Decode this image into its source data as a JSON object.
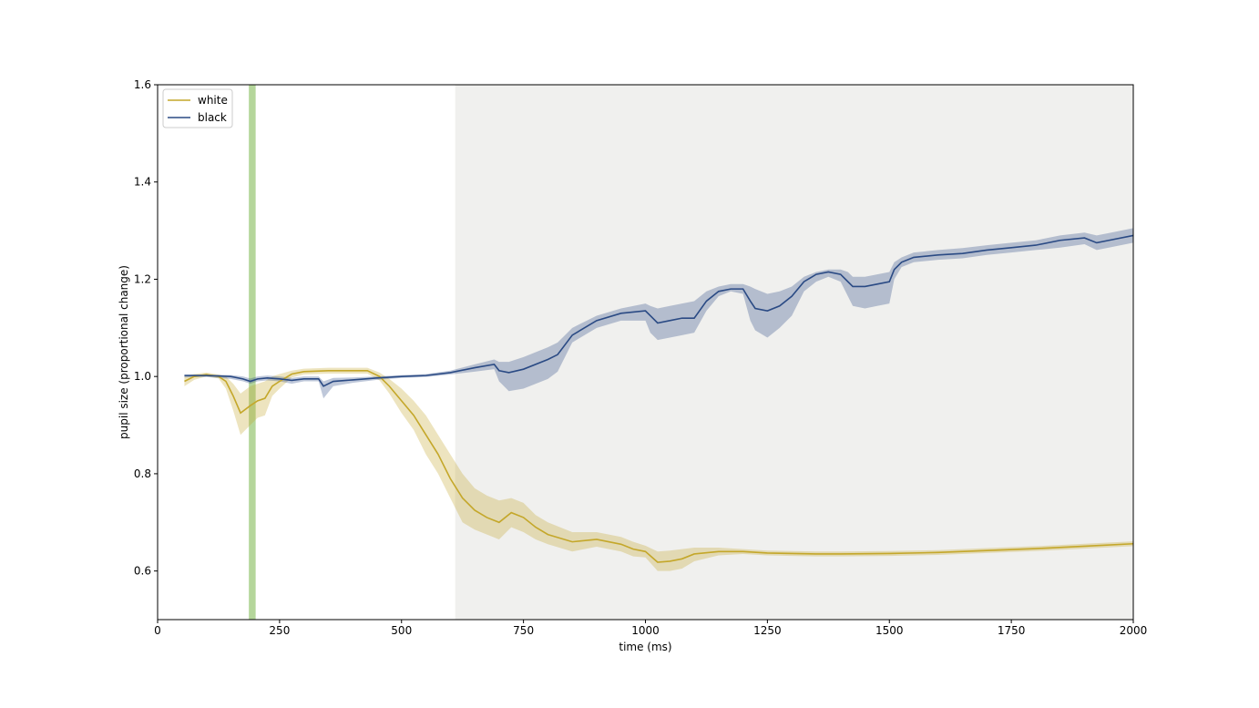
{
  "chart_data": {
    "type": "line",
    "xlabel": "time (ms)",
    "ylabel": "pupil size (proportional change)",
    "xlim": [
      0,
      2000
    ],
    "ylim": [
      0.5,
      1.6
    ],
    "xticks": [
      0,
      250,
      500,
      750,
      1000,
      1250,
      1500,
      1750,
      2000
    ],
    "yticks": [
      0.6,
      0.8,
      1.0,
      1.2,
      1.4,
      1.6
    ],
    "xtick_labels": [
      "0",
      "250",
      "500",
      "750",
      "1000",
      "1250",
      "1500",
      "1750",
      "2000"
    ],
    "ytick_labels": [
      "0.6",
      "0.8",
      "1.0",
      "1.2",
      "1.4",
      "1.6"
    ],
    "grid": false,
    "legend_position": "top-left",
    "shaded_regions": [
      {
        "kind": "marker",
        "x_start": 187,
        "x_end": 201,
        "color": "#b5d69b"
      },
      {
        "kind": "window",
        "x_start": 610,
        "x_end": 2000,
        "color": "#f0f0ee"
      }
    ],
    "series": [
      {
        "name": "white",
        "color": "#c4a72a",
        "x": [
          55,
          75,
          100,
          125,
          140,
          155,
          170,
          190,
          205,
          220,
          235,
          250,
          275,
          300,
          350,
          400,
          430,
          455,
          475,
          500,
          525,
          550,
          575,
          600,
          625,
          650,
          675,
          700,
          725,
          750,
          775,
          800,
          850,
          900,
          950,
          975,
          1000,
          1025,
          1050,
          1075,
          1100,
          1150,
          1200,
          1250,
          1300,
          1350,
          1400,
          1500,
          1600,
          1700,
          1800,
          1900,
          2000
        ],
        "y": [
          0.99,
          1.0,
          1.004,
          1.0,
          0.99,
          0.96,
          0.925,
          0.94,
          0.95,
          0.955,
          0.98,
          0.99,
          1.005,
          1.01,
          1.012,
          1.012,
          1.012,
          1.0,
          0.98,
          0.95,
          0.92,
          0.88,
          0.84,
          0.79,
          0.75,
          0.725,
          0.71,
          0.7,
          0.72,
          0.71,
          0.69,
          0.675,
          0.66,
          0.665,
          0.655,
          0.645,
          0.64,
          0.618,
          0.62,
          0.625,
          0.635,
          0.64,
          0.64,
          0.637,
          0.636,
          0.635,
          0.635,
          0.636,
          0.638,
          0.642,
          0.646,
          0.651,
          0.656
        ],
        "upper": [
          1.0,
          1.005,
          1.008,
          1.004,
          1.0,
          0.985,
          0.965,
          0.98,
          0.985,
          0.99,
          1.0,
          1.005,
          1.012,
          1.016,
          1.018,
          1.018,
          1.018,
          1.008,
          0.995,
          0.975,
          0.95,
          0.92,
          0.88,
          0.84,
          0.8,
          0.77,
          0.755,
          0.745,
          0.75,
          0.74,
          0.715,
          0.7,
          0.68,
          0.68,
          0.67,
          0.66,
          0.652,
          0.64,
          0.642,
          0.645,
          0.648,
          0.648,
          0.645,
          0.642,
          0.641,
          0.64,
          0.64,
          0.641,
          0.643,
          0.647,
          0.651,
          0.656,
          0.661
        ],
        "lower": [
          0.98,
          0.993,
          1.0,
          0.996,
          0.975,
          0.93,
          0.88,
          0.9,
          0.915,
          0.92,
          0.96,
          0.975,
          0.998,
          1.004,
          1.006,
          1.006,
          1.006,
          0.992,
          0.965,
          0.925,
          0.89,
          0.84,
          0.8,
          0.75,
          0.7,
          0.685,
          0.675,
          0.665,
          0.69,
          0.68,
          0.665,
          0.655,
          0.64,
          0.65,
          0.64,
          0.63,
          0.628,
          0.6,
          0.6,
          0.605,
          0.62,
          0.632,
          0.635,
          0.632,
          0.631,
          0.63,
          0.63,
          0.631,
          0.633,
          0.637,
          0.641,
          0.646,
          0.651
        ]
      },
      {
        "name": "black",
        "color": "#2a4a84",
        "x": [
          55,
          100,
          150,
          175,
          190,
          205,
          225,
          250,
          275,
          300,
          330,
          340,
          360,
          400,
          450,
          500,
          550,
          600,
          650,
          690,
          700,
          720,
          750,
          800,
          820,
          850,
          900,
          950,
          1000,
          1010,
          1025,
          1050,
          1075,
          1100,
          1125,
          1150,
          1175,
          1200,
          1215,
          1225,
          1250,
          1275,
          1300,
          1325,
          1350,
          1375,
          1400,
          1415,
          1425,
          1450,
          1475,
          1500,
          1510,
          1525,
          1550,
          1600,
          1650,
          1700,
          1750,
          1800,
          1850,
          1900,
          1925,
          1950,
          2000
        ],
        "y": [
          1.002,
          1.002,
          1.0,
          0.995,
          0.99,
          0.995,
          0.997,
          0.995,
          0.992,
          0.995,
          0.995,
          0.98,
          0.99,
          0.993,
          0.997,
          1.0,
          1.002,
          1.008,
          1.018,
          1.025,
          1.012,
          1.008,
          1.015,
          1.035,
          1.045,
          1.085,
          1.115,
          1.13,
          1.135,
          1.125,
          1.11,
          1.115,
          1.12,
          1.12,
          1.155,
          1.175,
          1.18,
          1.18,
          1.155,
          1.14,
          1.135,
          1.145,
          1.165,
          1.195,
          1.21,
          1.215,
          1.21,
          1.195,
          1.185,
          1.185,
          1.19,
          1.195,
          1.22,
          1.235,
          1.245,
          1.25,
          1.253,
          1.26,
          1.265,
          1.27,
          1.28,
          1.285,
          1.275,
          1.28,
          1.29
        ],
        "upper": [
          1.004,
          1.004,
          1.003,
          1.0,
          0.996,
          1.0,
          1.002,
          1.0,
          0.997,
          1.0,
          1.0,
          0.99,
          0.997,
          0.998,
          1.0,
          1.003,
          1.005,
          1.012,
          1.025,
          1.035,
          1.03,
          1.03,
          1.04,
          1.06,
          1.07,
          1.1,
          1.125,
          1.14,
          1.15,
          1.145,
          1.14,
          1.145,
          1.15,
          1.155,
          1.175,
          1.185,
          1.19,
          1.19,
          1.185,
          1.18,
          1.17,
          1.175,
          1.185,
          1.205,
          1.215,
          1.22,
          1.22,
          1.215,
          1.205,
          1.205,
          1.21,
          1.215,
          1.235,
          1.245,
          1.255,
          1.26,
          1.264,
          1.27,
          1.275,
          1.28,
          1.29,
          1.296,
          1.29,
          1.295,
          1.305
        ],
        "lower": [
          0.998,
          0.999,
          0.995,
          0.99,
          0.985,
          0.99,
          0.992,
          0.99,
          0.985,
          0.99,
          0.99,
          0.955,
          0.98,
          0.987,
          0.993,
          0.997,
          0.999,
          1.004,
          1.01,
          1.015,
          0.99,
          0.97,
          0.975,
          0.995,
          1.01,
          1.07,
          1.1,
          1.115,
          1.115,
          1.09,
          1.075,
          1.08,
          1.085,
          1.09,
          1.135,
          1.165,
          1.175,
          1.17,
          1.115,
          1.095,
          1.08,
          1.1,
          1.125,
          1.175,
          1.195,
          1.205,
          1.195,
          1.165,
          1.145,
          1.14,
          1.145,
          1.15,
          1.2,
          1.225,
          1.235,
          1.24,
          1.243,
          1.25,
          1.255,
          1.26,
          1.265,
          1.272,
          1.26,
          1.265,
          1.275
        ]
      }
    ]
  }
}
